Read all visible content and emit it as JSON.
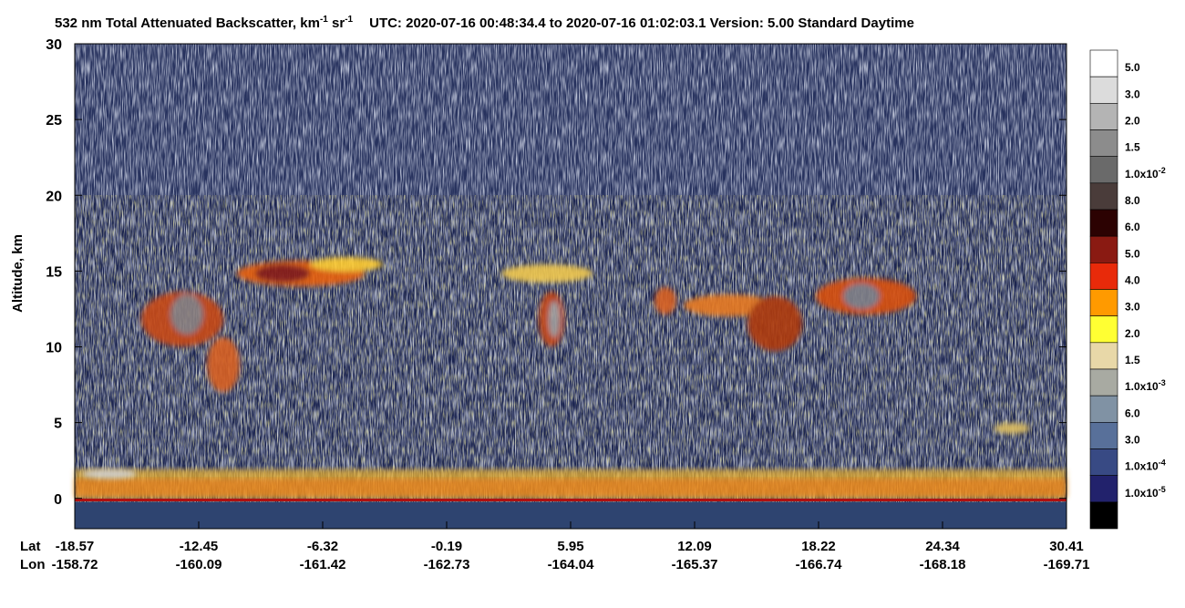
{
  "chart_data": {
    "type": "heatmap",
    "title_parts": [
      "532 nm Total Attenuated Backscatter, km",
      "-1",
      " sr",
      "-1",
      "UTC:  2020-07-16 00:48:34.4  to  2020-07-16 01:02:03.1    Version: 5.00  Standard  Daytime"
    ],
    "ylabel": "Altitude, km",
    "ylim": [
      -2,
      30
    ],
    "yticks": [
      0,
      5,
      10,
      15,
      20,
      25,
      30
    ],
    "x_row_labels": [
      "Lat",
      "Lon"
    ],
    "lat": [
      "-18.57",
      "-12.45",
      "-6.32",
      "-0.19",
      "5.95",
      "12.09",
      "18.22",
      "24.34",
      "30.41"
    ],
    "lon": [
      "-158.72",
      "-160.09",
      "-161.42",
      "-162.73",
      "-164.04",
      "-165.37",
      "-166.74",
      "-168.18",
      "-169.71"
    ],
    "colorbar": {
      "colors": [
        "#ffffff",
        "#dcdcdc",
        "#b4b4b4",
        "#8c8c8c",
        "#6a6a6a",
        "#4a3c3a",
        "#2c0202",
        "#8a1a12",
        "#e82a0a",
        "#ff9a00",
        "#ffff33",
        "#e8d8a8",
        "#a8aaa2",
        "#8092a4",
        "#58709a",
        "#384a84",
        "#22226c",
        "#000000"
      ],
      "labels": [
        "5.0",
        "3.0",
        "2.0",
        "1.5",
        {
          "text": "1.0x10",
          "sup": "-2"
        },
        "8.0",
        "6.0",
        "5.0",
        "4.0",
        "3.0",
        "2.0",
        "1.5",
        {
          "text": "1.0x10",
          "sup": "-3"
        },
        "6.0",
        "3.0",
        {
          "text": "1.0x10",
          "sup": "-4"
        },
        {
          "text": "1.0x10",
          "sup": "-5"
        }
      ]
    }
  }
}
